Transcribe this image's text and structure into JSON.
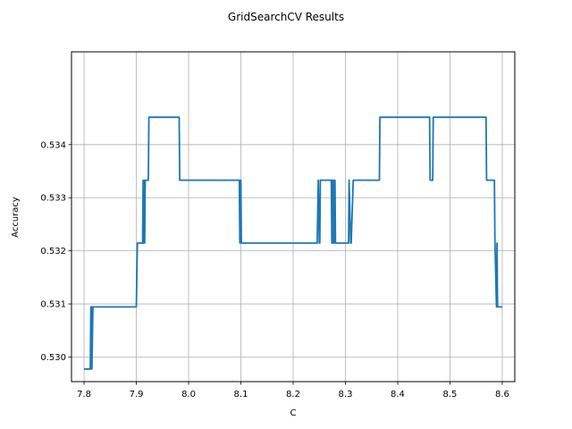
{
  "chart_data": {
    "type": "line",
    "title": "GridSearchCV Results",
    "xlabel": "C",
    "ylabel": "Accuracy",
    "xlim": [
      7.776,
      8.624
    ],
    "ylim": [
      0.529537,
      0.535747
    ],
    "xticks": [
      7.8,
      7.9,
      8.0,
      8.1,
      8.2,
      8.3,
      8.4,
      8.5,
      8.6
    ],
    "xtick_labels": [
      "7.8",
      "7.9",
      "8.0",
      "8.1",
      "8.2",
      "8.3",
      "8.4",
      "8.5",
      "8.6"
    ],
    "yticks": [
      0.53,
      0.531,
      0.532,
      0.533,
      0.534
    ],
    "ytick_labels": [
      "0.530",
      "0.531",
      "0.532",
      "0.533",
      "0.534"
    ],
    "grid": true,
    "line_color": "#1f77b4",
    "series": [
      {
        "x": [
          7.8,
          7.812,
          7.813,
          7.815,
          7.815,
          7.817,
          7.9,
          7.902,
          7.903,
          7.912,
          7.913,
          7.914,
          7.915,
          7.916,
          7.917,
          7.918,
          7.919,
          7.923,
          7.924,
          7.982,
          7.983,
          8.097,
          8.098,
          8.1,
          8.101,
          8.102,
          8.103,
          8.246,
          8.248,
          8.25,
          8.251,
          8.252,
          8.253,
          8.273,
          8.274,
          8.275,
          8.276,
          8.277,
          8.278,
          8.28,
          8.281,
          8.282,
          8.283,
          8.288,
          8.289,
          8.306,
          8.307,
          8.31,
          8.311,
          8.315,
          8.316,
          8.365,
          8.366,
          8.461,
          8.462,
          8.467,
          8.468,
          8.569,
          8.57,
          8.585,
          8.586,
          8.589,
          8.59,
          8.591,
          8.592,
          8.6
        ],
        "y": [
          0.529774,
          0.529774,
          0.530945,
          0.530945,
          0.529774,
          0.530945,
          0.530945,
          0.532145,
          0.532145,
          0.532145,
          0.53333,
          0.532145,
          0.53333,
          0.532145,
          0.53333,
          0.53333,
          0.53333,
          0.53333,
          0.534515,
          0.534515,
          0.53333,
          0.53333,
          0.532145,
          0.53333,
          0.532145,
          0.532145,
          0.532145,
          0.532145,
          0.53333,
          0.532145,
          0.532145,
          0.53333,
          0.53333,
          0.53333,
          0.532145,
          0.53333,
          0.532145,
          0.53333,
          0.532145,
          0.53333,
          0.532145,
          0.532145,
          0.532145,
          0.532145,
          0.532145,
          0.532145,
          0.53333,
          0.532145,
          0.532145,
          0.53333,
          0.53333,
          0.53333,
          0.534515,
          0.534515,
          0.53333,
          0.53333,
          0.534515,
          0.534515,
          0.53333,
          0.53333,
          0.532145,
          0.530945,
          0.532145,
          0.530945,
          0.530945,
          0.530945
        ]
      }
    ]
  }
}
